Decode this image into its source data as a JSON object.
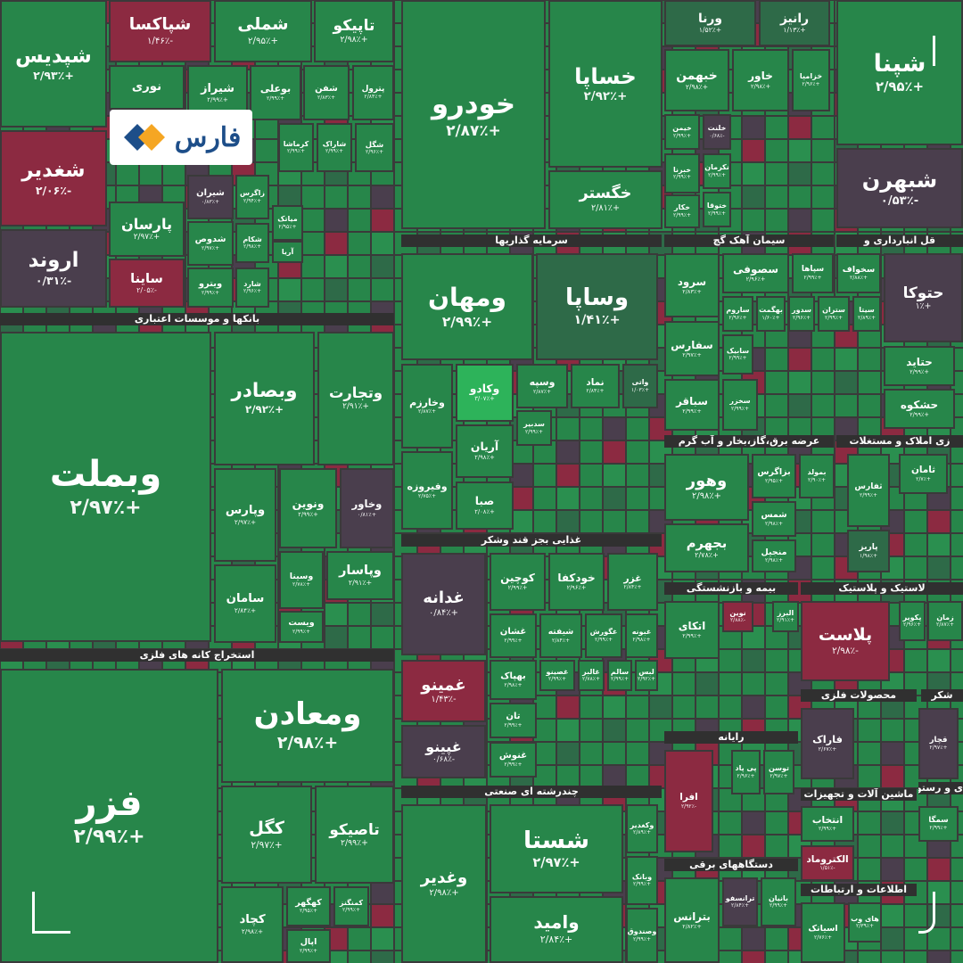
{
  "tiles": [
    {
      "name": "شپدیس",
      "change": "+۲/۹۳٪"
    },
    {
      "name": "شپاکسا",
      "change": "-۱/۴۶٪"
    },
    {
      "name": "شملی",
      "change": "+۲/۹۵٪"
    },
    {
      "name": "تاپیکو",
      "change": "+۲/۹۸٪"
    },
    {
      "name": "نوری"
    },
    {
      "name": "شیراز",
      "change": "+۲/۹۹٪"
    },
    {
      "name": "بوعلی",
      "change": "+۲/۹۹٪"
    },
    {
      "name": "شفن",
      "change": "+۲/۸۳٪"
    },
    {
      "name": "پترول",
      "change": "+۲/۸۴٪"
    },
    {
      "name": "شغدیر",
      "change": "-۲/۰۶٪"
    },
    {
      "name": "اروند",
      "change": "-۰/۳۱٪"
    },
    {
      "name": "پارسان",
      "change": "+۲/۹۷٪"
    },
    {
      "name": "ساینا",
      "change": "-۲/۰۵٪"
    },
    {
      "name": "شیران",
      "change": "+۰/۸۳٪"
    },
    {
      "name": "شدوص",
      "change": "+۲/۹۷٪"
    },
    {
      "name": "ویترو",
      "change": "+۲/۹۹٪"
    },
    {
      "name": "زاگرس",
      "change": "+۲/۹۴٪"
    },
    {
      "name": "شکام",
      "change": "+۲/۹۸٪"
    },
    {
      "name": "شارد",
      "change": "+۲/۹۶٪"
    },
    {
      "name": "کرماشا",
      "change": "+۲/۹۹٪"
    },
    {
      "name": "شاراک",
      "change": "+۲/۹۹٪"
    },
    {
      "name": "شگل",
      "change": "+۲/۹۶٪"
    },
    {
      "name": "میاتک",
      "change": "+۲/۹۵٪"
    },
    {
      "name": "آریا"
    },
    {
      "name": "وبملت",
      "change": "+۲/۹۷٪"
    },
    {
      "name": "وبصادر",
      "change": "+۲/۹۲٪"
    },
    {
      "name": "وتجارت",
      "change": "+۲/۹۱٪"
    },
    {
      "name": "وپارس",
      "change": "+۲/۹۷٪"
    },
    {
      "name": "ونوین",
      "change": "+۲/۹۹٪"
    },
    {
      "name": "وخاور",
      "change": "+۰/۸۱٪"
    },
    {
      "name": "وسینا",
      "change": "+۲/۷۸٪"
    },
    {
      "name": "وپاسار",
      "change": "+۲/۹۱٪"
    },
    {
      "name": "سامان",
      "change": "+۲/۸۴٪"
    },
    {
      "name": "ویست",
      "change": "+۲/۹۹٪"
    },
    {
      "name": "فزر",
      "change": "+۲/۹۹٪"
    },
    {
      "name": "ومعادن",
      "change": "+۲/۹۸٪"
    },
    {
      "name": "کگل",
      "change": "+۲/۹۷٪"
    },
    {
      "name": "تاصیکو",
      "change": "+۲/۹۹٪"
    },
    {
      "name": "کچاد",
      "change": "+۲/۹۸٪"
    },
    {
      "name": "کهگهر",
      "change": "+۲/۹۵٪"
    },
    {
      "name": "کمنگنز",
      "change": "+۲/۹۹٪"
    },
    {
      "name": "اپال",
      "change": "+۲/۹۹٪"
    },
    {
      "name": "خودرو",
      "change": "+۲/۸۷٪"
    },
    {
      "name": "خساپا",
      "change": "+۲/۹۲٪"
    },
    {
      "name": "خگستر",
      "change": "+۲/۸۱٪"
    },
    {
      "name": "ورنا",
      "change": "+۱/۵۲٪"
    },
    {
      "name": "رانیز",
      "change": "+۱/۱۳٪"
    },
    {
      "name": "خبهمن",
      "change": "+۲/۹۸٪"
    },
    {
      "name": "خاور",
      "change": "+۲/۹۸٪"
    },
    {
      "name": "خزامیا",
      "change": "+۲/۹۶٪"
    },
    {
      "name": "شپنا",
      "change": "+۲/۹۵٪"
    },
    {
      "name": "شبهرن",
      "change": "-۰/۵۳٪"
    },
    {
      "name": "خیمن",
      "change": "+۲/۹۹٪"
    },
    {
      "name": "خلنت",
      "change": "-۰/۶۸٪"
    },
    {
      "name": "خبرنا",
      "change": "+۲/۹۹٪"
    },
    {
      "name": "نکرمان",
      "change": "+۲/۹۹٪"
    },
    {
      "name": "خکار",
      "change": "+۲/۹۹٪"
    },
    {
      "name": "ختوقا",
      "change": "+۲/۹۹٪"
    },
    {
      "name": "ومهان",
      "change": "+۲/۹۹٪"
    },
    {
      "name": "وساپا",
      "change": "+۱/۴۱٪"
    },
    {
      "name": "وخارزم",
      "change": "+۲/۸۷٪"
    },
    {
      "name": "وکادو",
      "change": "+۳/۰۷٪"
    },
    {
      "name": "وسپه",
      "change": "+۲/۸۷٪"
    },
    {
      "name": "نماد",
      "change": "+۲/۸۴٪"
    },
    {
      "name": "واتی",
      "change": "+۱/۰۳٪"
    },
    {
      "name": "وفیروزه",
      "change": "+۲/۷۵٪"
    },
    {
      "name": "آریان",
      "change": "+۲/۹۸٪"
    },
    {
      "name": "صبا",
      "change": "+۲/۰۸٪"
    },
    {
      "name": "سدبیر",
      "change": "+۲/۹۹٪"
    },
    {
      "name": "غدانه",
      "change": "+۰/۸۴٪"
    },
    {
      "name": "کوچین",
      "change": "+۲/۹۹٪"
    },
    {
      "name": "خودکفا",
      "change": "+۲/۹۶٪"
    },
    {
      "name": "غزر",
      "change": "+۲/۸۴٪"
    },
    {
      "name": "غشان",
      "change": "+۲/۹۹٪"
    },
    {
      "name": "شیفته",
      "change": "+۲/۸۴٪"
    },
    {
      "name": "غگورش",
      "change": "+۲/۹۹٪"
    },
    {
      "name": "غبونه",
      "change": "+۲/۹۸٪"
    },
    {
      "name": "غمینو",
      "change": "-۱/۴۳٪"
    },
    {
      "name": "غپینو",
      "change": "-۰/۶۸٪"
    },
    {
      "name": "بهپاک",
      "change": "+۲/۹۸٪"
    },
    {
      "name": "غصینو",
      "change": "+۲/۹۹٪"
    },
    {
      "name": "غالبر",
      "change": "+۲/۷۸٪"
    },
    {
      "name": "سالم",
      "change": "+۲/۹۹٪"
    },
    {
      "name": "لبس",
      "change": "+۲/۹۲٪"
    },
    {
      "name": "تان",
      "change": "+۲/۹۹٪"
    },
    {
      "name": "غنوش",
      "change": "+۲/۹۹٪"
    },
    {
      "name": "شستا",
      "change": "+۲/۹۷٪"
    },
    {
      "name": "وغدیر",
      "change": "+۲/۹۸٪"
    },
    {
      "name": "وامید",
      "change": "+۲/۸۴٪"
    },
    {
      "name": "وکغدیر",
      "change": "+۲/۸۹٪"
    },
    {
      "name": "وبانک",
      "change": "+۲/۹۹٪"
    },
    {
      "name": "وصندوق",
      "change": "+۲/۹۹٪"
    },
    {
      "name": "سرود",
      "change": "+۲/۸۳٪"
    },
    {
      "name": "سصوفی",
      "change": "+۲/۹۶٪"
    },
    {
      "name": "سپاها",
      "change": "+۲/۹۹٪"
    },
    {
      "name": "ساروم",
      "change": "+۲/۹۶٪"
    },
    {
      "name": "بهگمت",
      "change": "+۱/۶۰٪"
    },
    {
      "name": "سدور",
      "change": "+۲/۹۶٪"
    },
    {
      "name": "ستران",
      "change": "+۲/۹۹٪"
    },
    {
      "name": "سفارس",
      "change": "+۲/۹۷٪"
    },
    {
      "name": "سابیک",
      "change": "+۲/۹۹٪"
    },
    {
      "name": "سباقر",
      "change": "+۲/۹۹٪"
    },
    {
      "name": "سخزر",
      "change": "+۲/۹۹٪"
    },
    {
      "name": "سخواف",
      "change": "+۲/۸۸٪"
    },
    {
      "name": "سیتا",
      "change": "+۲/۸۹٪"
    },
    {
      "name": "حتوکا",
      "change": "+۱٪"
    },
    {
      "name": "حتاید",
      "change": "+۲/۹۹٪"
    },
    {
      "name": "حشکوه",
      "change": "+۲/۹۹٪"
    },
    {
      "name": "وهور",
      "change": "+۲/۹۸٪"
    },
    {
      "name": "بجهرم",
      "change": "+۲/۷۸٪"
    },
    {
      "name": "بزاگرس",
      "change": "+۲/۹۵٪"
    },
    {
      "name": "بمولد",
      "change": "+۲/۹۰٪"
    },
    {
      "name": "شمس",
      "change": "+۲/۹۸٪"
    },
    {
      "name": "منجیل",
      "change": "+۲/۹۸٪"
    },
    {
      "name": "ثفارس",
      "change": "+۲/۹۹٪"
    },
    {
      "name": "ثامان",
      "change": "+۲/۷٪"
    },
    {
      "name": "پاریز",
      "change": "+۱/۹۸٪"
    },
    {
      "name": "اتکای",
      "change": "+۲/۹۹٪"
    },
    {
      "name": "نوین",
      "change": "-۲/۸۸٪"
    },
    {
      "name": "البرز",
      "change": "+۲/۹۱٪"
    },
    {
      "name": "پلاست",
      "change": "-۲/۹۸٪"
    },
    {
      "name": "پکویر",
      "change": "+۲/۹۶٪"
    },
    {
      "name": "زمان",
      "change": "+۲/۸۷٪"
    },
    {
      "name": "فاراک",
      "change": "+۲/۶۷٪"
    },
    {
      "name": "قچار",
      "change": "+۲/۹۷٪"
    },
    {
      "name": "افرا",
      "change": "-۲/۹۲٪"
    },
    {
      "name": "پی پاد",
      "change": "+۲/۹۶٪"
    },
    {
      "name": "توسن",
      "change": "+۲/۹۷٪"
    },
    {
      "name": "انتخاب",
      "change": "+۲/۹۹٪"
    },
    {
      "name": "الکتروماد",
      "change": "-۱/۵۱٪"
    },
    {
      "name": "سمگا",
      "change": "+۲/۹۹٪"
    },
    {
      "name": "بترانس",
      "change": "+۲/۸۲٪"
    },
    {
      "name": "ترانسفو",
      "change": "+۲/۸۴٪"
    },
    {
      "name": "بانیان",
      "change": "+۲/۹۹٪"
    },
    {
      "name": "اسیاتک",
      "change": "+۲/۷۶٪"
    },
    {
      "name": "های وب",
      "change": "+۲/۳۹٪"
    }
  ],
  "sectors": [
    "بانکها و موسسات اعتباری",
    "استخراج کانه های فلزی",
    "سرمایه گذاریها",
    "سیمان آهک گچ",
    "قل انبارداری و",
    "غذایی بجز قند وشکر",
    "چندرشته ای صنعتی",
    "عرضه برق،گاز،بخار و آب گرم",
    "زی املاک و مستغلات",
    "بیمه و بازنشستگی",
    "لاستیک و پلاستیک",
    "محصولات فلزی",
    "شکر",
    "رایانه",
    "ماشین آلات و تجهیزات",
    "ی و رستوران",
    "دستگاههای برقی",
    "اطلاعات و ارتباطات"
  ],
  "logo": "فارس"
}
